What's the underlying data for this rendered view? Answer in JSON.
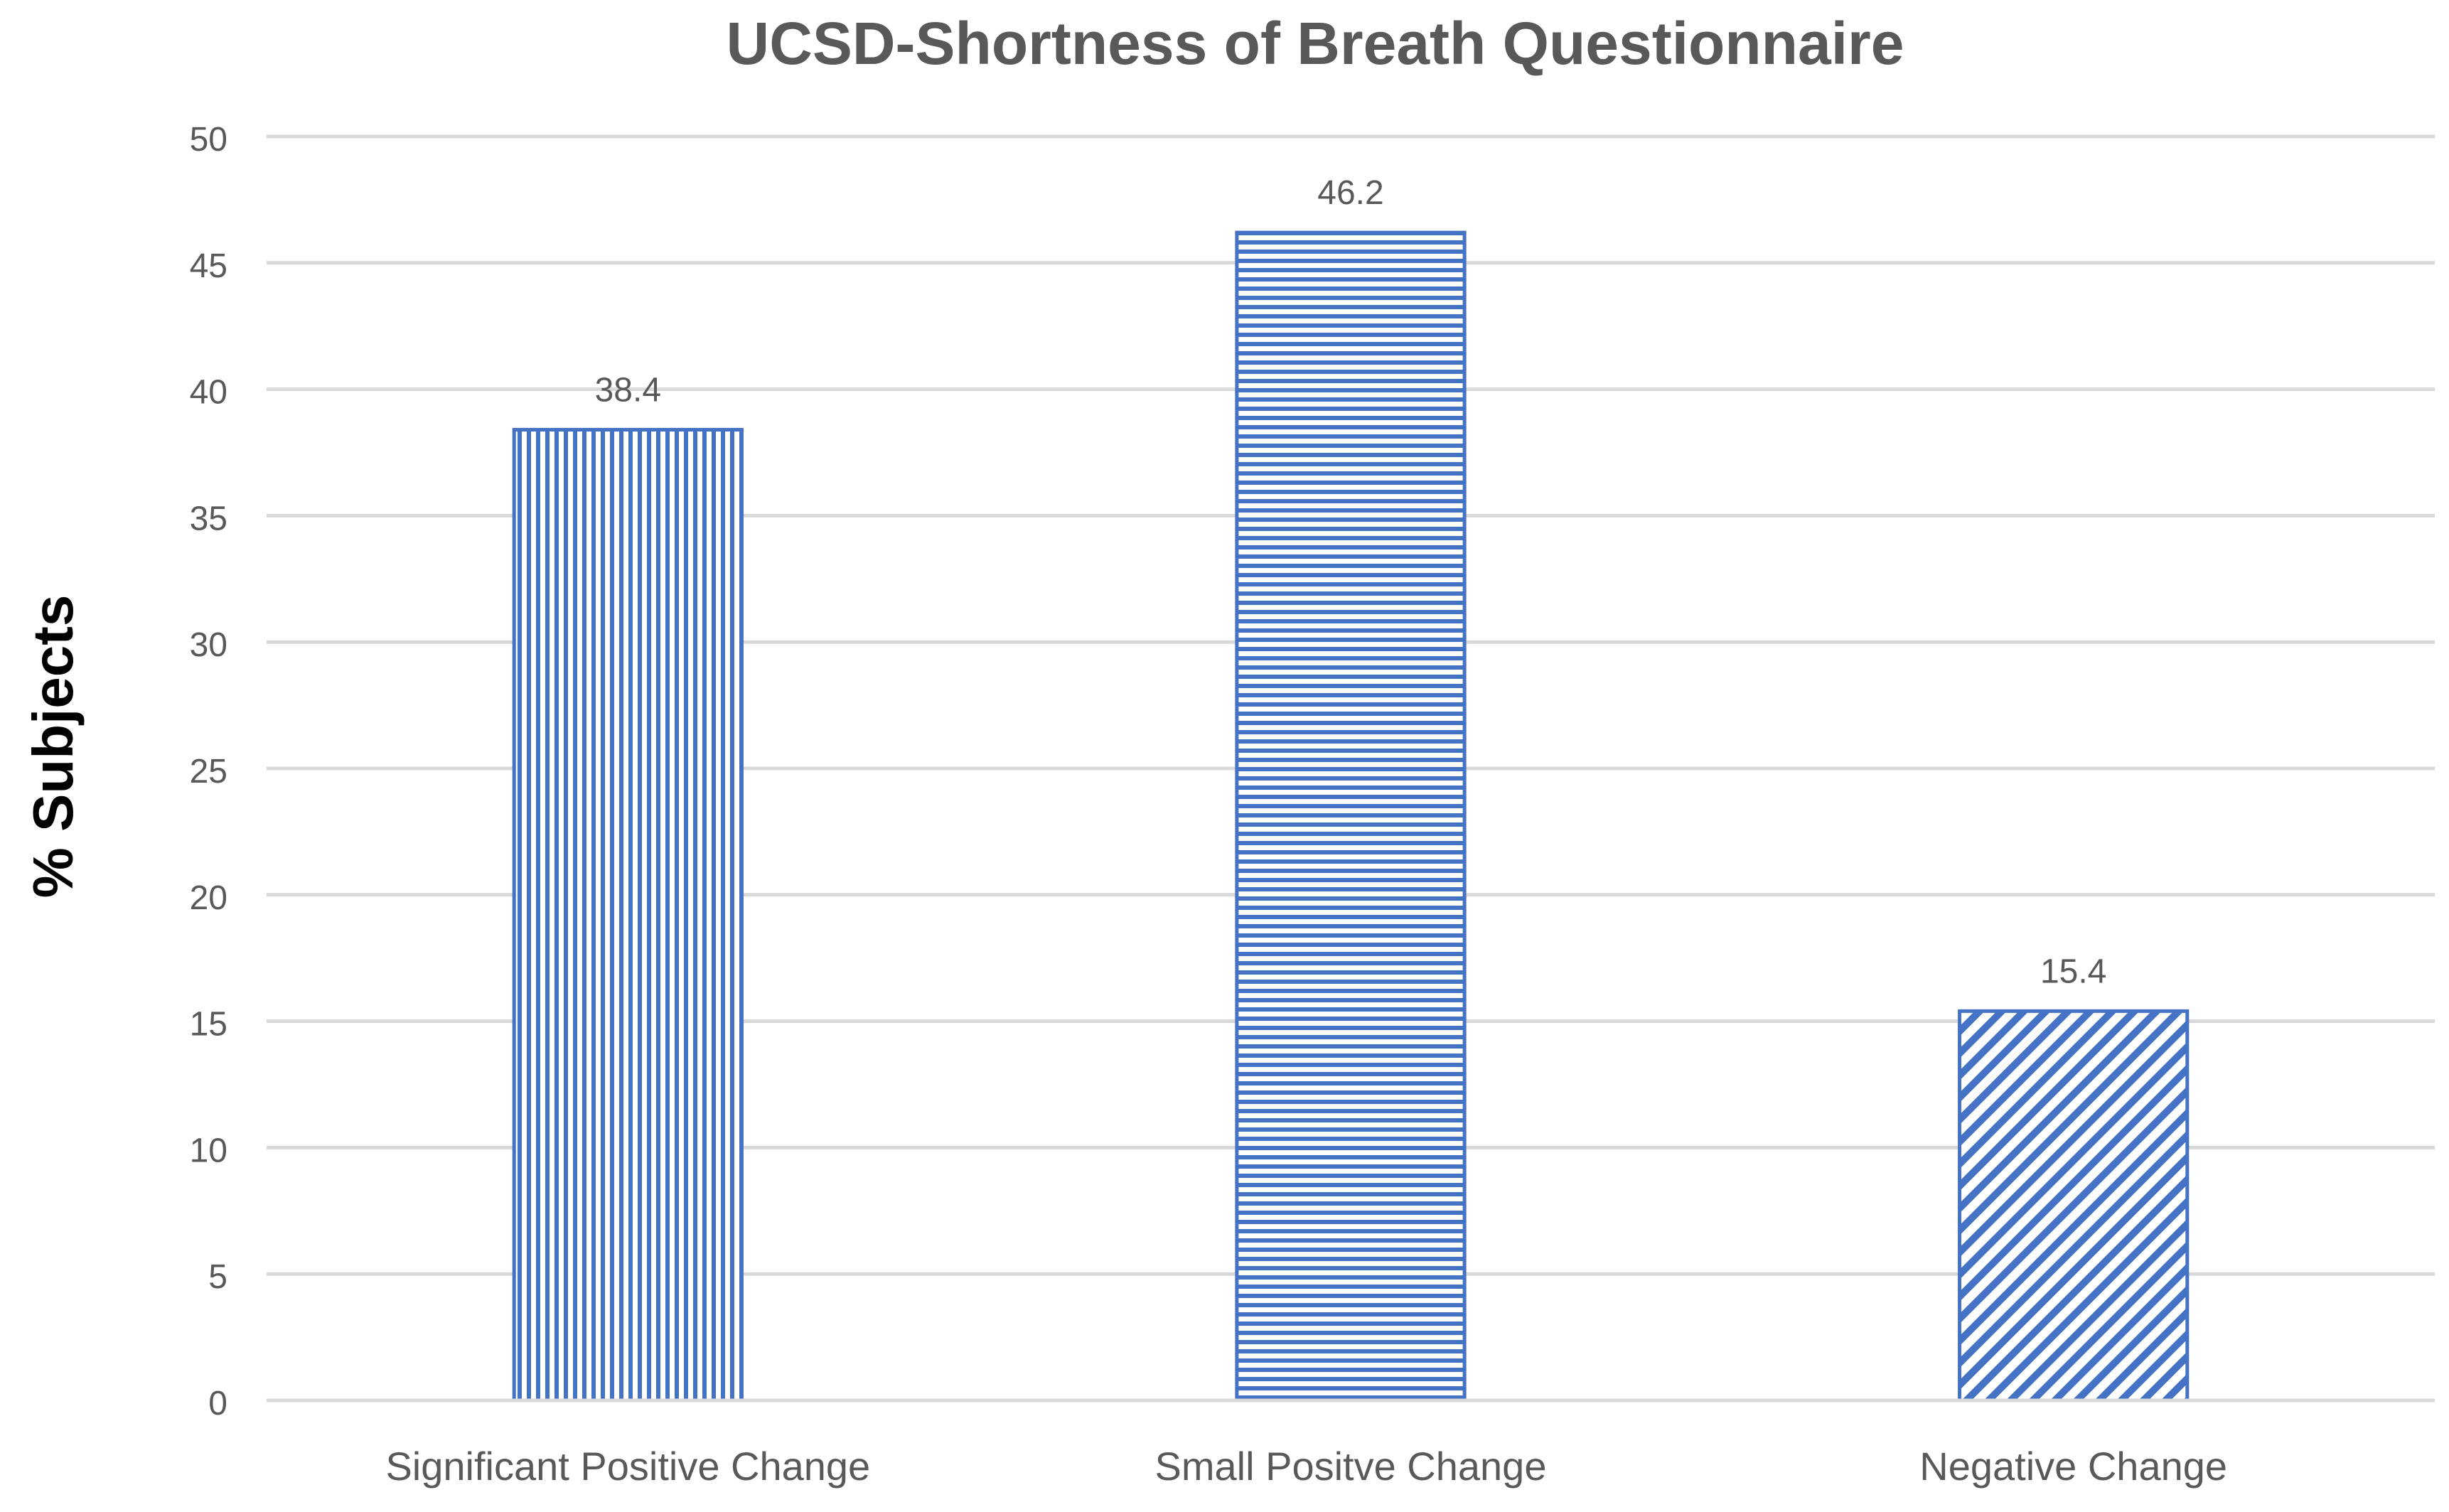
{
  "chart_data": {
    "type": "bar",
    "title": "UCSD-Shortness of Breath Questionnaire",
    "xlabel": "",
    "ylabel": "% Subjects",
    "categories": [
      "Significant Positive Change",
      "Small Positve Change",
      "Negative Change"
    ],
    "values": [
      38.4,
      46.2,
      15.4
    ],
    "data_labels": [
      "38.4",
      "46.2",
      "15.4"
    ],
    "patterns": [
      "vertical-stripes",
      "horizontal-stripes",
      "diagonal-stripes"
    ],
    "ylim": [
      0,
      50
    ],
    "yticks": [
      0,
      5,
      10,
      15,
      20,
      25,
      30,
      35,
      40,
      45,
      50
    ],
    "grid": true,
    "legend": "none",
    "colors": {
      "bar": "#4472c4",
      "grid": "#d9d9d9",
      "axis_text": "#595959",
      "title": "#595959",
      "ylabel": "#000000"
    }
  }
}
